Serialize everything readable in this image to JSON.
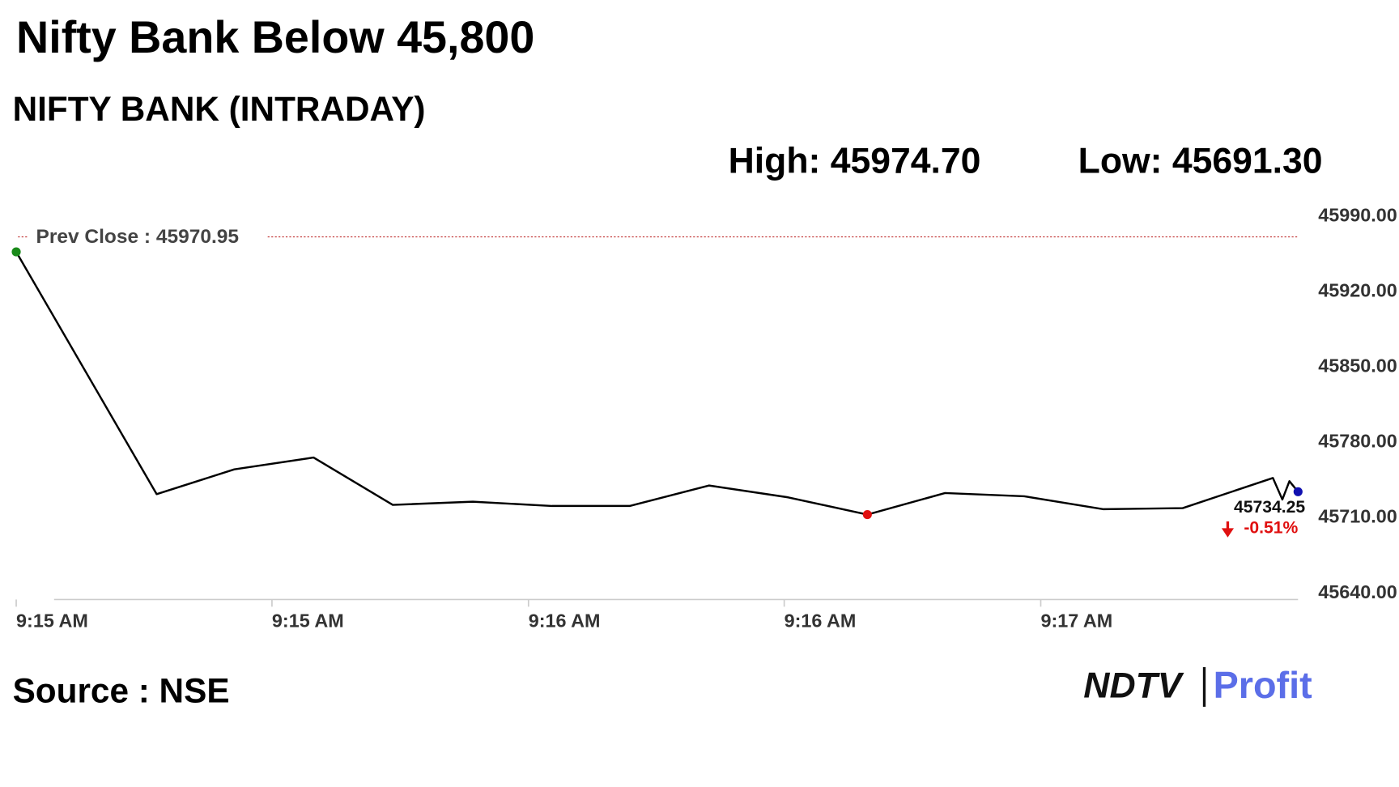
{
  "chart_data": {
    "type": "line",
    "title": "Nifty Bank Below 45,800",
    "subtitle": "NIFTY BANK (INTRADAY)",
    "high_label": "High: 45974.70",
    "low_label": "Low: 45691.30",
    "x": [
      0,
      1.79,
      2.78,
      3.79,
      4.8,
      5.82,
      6.83,
      7.82,
      8.83,
      9.84,
      10.85,
      11.84,
      12.85,
      13.86,
      14.87,
      16.02,
      16.14,
      16.23,
      16.34
    ],
    "series": [
      {
        "name": "NIFTY BANK",
        "color": "#000000",
        "values": [
          45957,
          45732,
          45755,
          45766,
          45722,
          45725,
          45721,
          45721,
          45740,
          45729,
          45713,
          45733,
          45730,
          45718,
          45719,
          45747,
          45727,
          45744,
          45734.25
        ],
        "value_labels": [
          null,
          null,
          null,
          null,
          null,
          null,
          null,
          null,
          null,
          null,
          null,
          null,
          null,
          null,
          null,
          null,
          null,
          null,
          "45734.25"
        ]
      }
    ],
    "markers": [
      {
        "index": 0,
        "color": "#1a8a1a"
      },
      {
        "index": 10,
        "color": "#e01010"
      },
      {
        "index": 18,
        "color": "#1010b0"
      }
    ],
    "reference_line": {
      "label": "Prev Close : 45970.95",
      "value": 45970.95,
      "color": "#c03030"
    },
    "change_label": "-0.51%",
    "change_color": "#e01010",
    "xlim": [
      0,
      16.34
    ],
    "xticks": [
      {
        "value": 0,
        "label": "9:15 AM"
      },
      {
        "value": 3.26,
        "label": "9:15 AM"
      },
      {
        "value": 6.53,
        "label": "9:16 AM"
      },
      {
        "value": 9.79,
        "label": "9:16 AM"
      },
      {
        "value": 13.06,
        "label": "9:17 AM"
      }
    ],
    "ylim": [
      45640,
      45990
    ],
    "yticks": [
      {
        "value": 45640,
        "label": "45640.00"
      },
      {
        "value": 45710,
        "label": "45710.00"
      },
      {
        "value": 45780,
        "label": "45780.00"
      },
      {
        "value": 45850,
        "label": "45850.00"
      },
      {
        "value": 45920,
        "label": "45920.00"
      },
      {
        "value": 45990,
        "label": "45990.00"
      }
    ],
    "source": "Source : NSE",
    "logo": [
      "NDTV",
      "Profit"
    ]
  }
}
